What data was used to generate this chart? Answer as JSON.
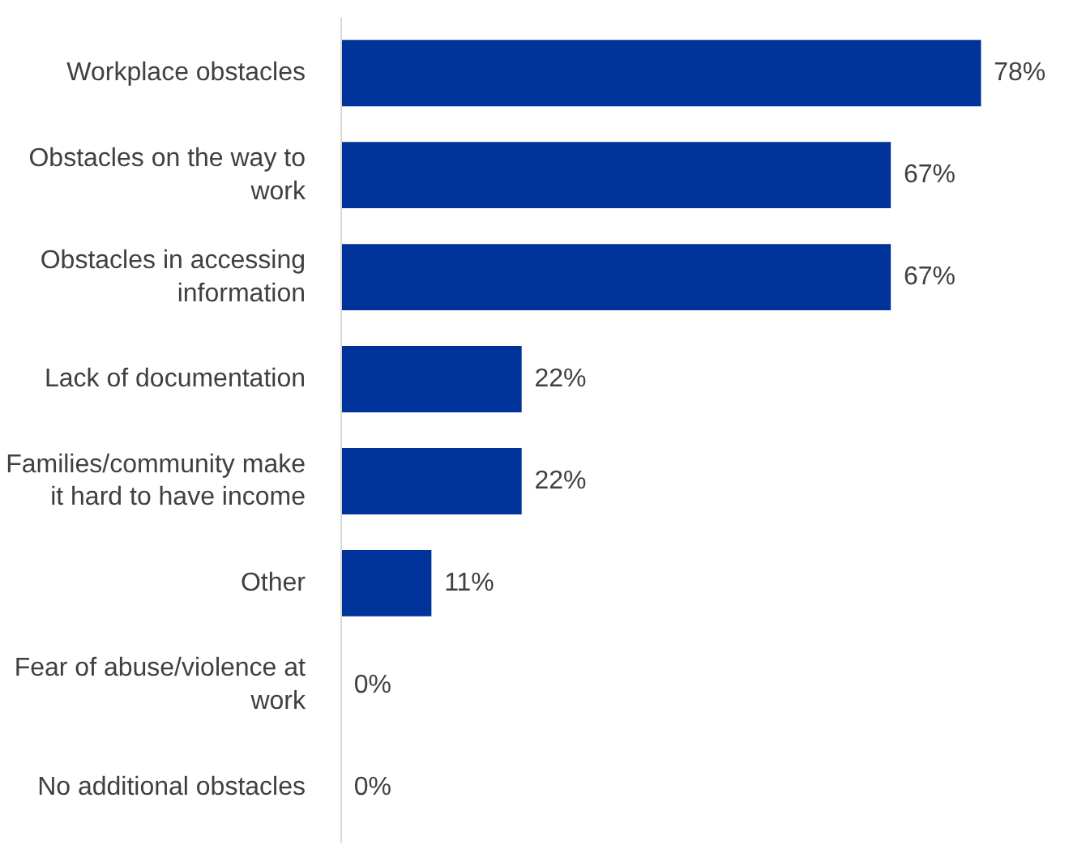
{
  "chart_data": {
    "type": "bar",
    "orientation": "horizontal",
    "categories": [
      "Workplace obstacles",
      "Obstacles on the way to work",
      "Obstacles in accessing information",
      "Lack of documentation",
      "Families/community make it hard to have income",
      "Other",
      "Fear of abuse/violence at work",
      "No additional obstacles"
    ],
    "values": [
      78,
      67,
      67,
      22,
      22,
      11,
      0,
      0
    ],
    "value_labels": [
      "78%",
      "67%",
      "67%",
      "22%",
      "22%",
      "11%",
      "0%",
      "0%"
    ],
    "color": "#003399",
    "grid": false
  }
}
